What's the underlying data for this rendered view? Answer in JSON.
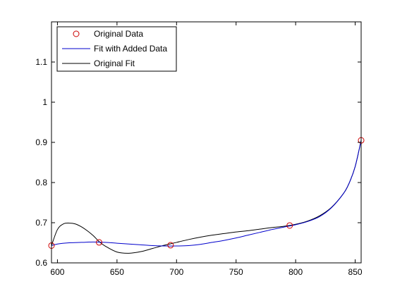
{
  "chart_data": {
    "type": "line",
    "title": "",
    "xlabel": "",
    "ylabel": "",
    "xlim": [
      595,
      855
    ],
    "ylim": [
      0.6,
      1.2
    ],
    "xticks": [
      600,
      650,
      700,
      750,
      800,
      850
    ],
    "yticks": [
      0.6,
      0.7,
      0.8,
      0.9,
      1,
      1.1
    ],
    "xtick_labels": [
      "600",
      "650",
      "700",
      "750",
      "800",
      "850"
    ],
    "ytick_labels": [
      "0.6",
      "0.7",
      "0.8",
      "0.9",
      "1",
      "1.1"
    ],
    "grid": false,
    "legend_position": "top-left",
    "series": [
      {
        "name": "Original Data",
        "style": "markers",
        "marker": "circle",
        "color": "#cc0000",
        "x": [
          595,
          635,
          695,
          795,
          855
        ],
        "y": [
          0.643,
          0.651,
          0.644,
          0.693,
          0.905
        ]
      },
      {
        "name": "Fit with Added Data",
        "style": "line",
        "color": "#0000cc",
        "x": [
          595,
          600,
          610,
          620,
          630,
          640,
          650,
          660,
          670,
          680,
          690,
          700,
          710,
          720,
          730,
          740,
          750,
          760,
          770,
          780,
          790,
          800,
          810,
          820,
          830,
          840,
          845,
          850,
          855
        ],
        "y": [
          0.643,
          0.647,
          0.65,
          0.651,
          0.652,
          0.651,
          0.649,
          0.647,
          0.645,
          0.643,
          0.642,
          0.642,
          0.643,
          0.646,
          0.651,
          0.656,
          0.662,
          0.669,
          0.676,
          0.683,
          0.689,
          0.695,
          0.703,
          0.715,
          0.737,
          0.772,
          0.799,
          0.84,
          0.905
        ]
      },
      {
        "name": "Original Fit",
        "style": "line",
        "color": "#000000",
        "x": [
          595,
          600,
          605,
          610,
          615,
          620,
          625,
          630,
          635,
          640,
          650,
          660,
          670,
          680,
          690,
          700,
          710,
          720,
          730,
          740,
          750,
          760,
          770,
          780,
          790,
          800,
          810,
          820,
          830,
          840,
          845,
          850,
          855
        ],
        "y": [
          0.643,
          0.683,
          0.697,
          0.699,
          0.697,
          0.69,
          0.68,
          0.668,
          0.653,
          0.642,
          0.627,
          0.624,
          0.628,
          0.636,
          0.644,
          0.651,
          0.658,
          0.664,
          0.669,
          0.673,
          0.677,
          0.68,
          0.684,
          0.688,
          0.691,
          0.696,
          0.704,
          0.717,
          0.738,
          0.772,
          0.799,
          0.84,
          0.905
        ]
      }
    ]
  }
}
